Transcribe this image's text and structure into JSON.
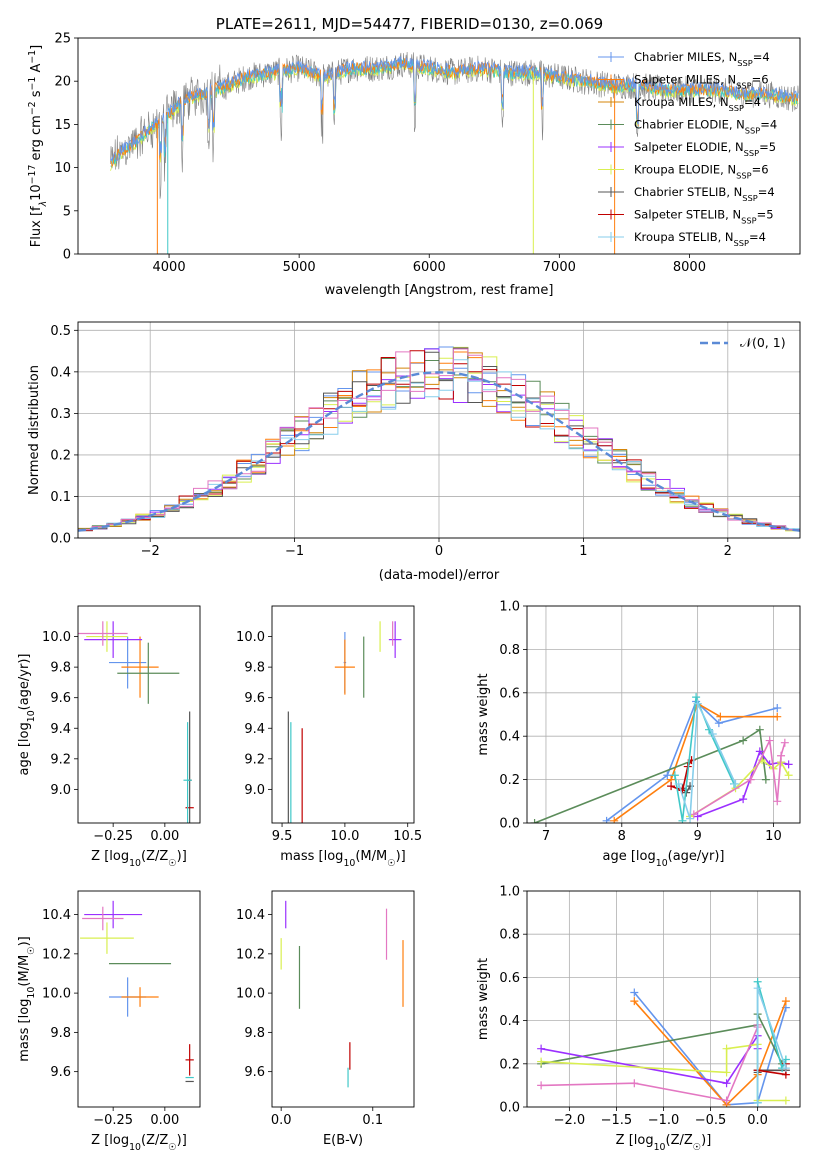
{
  "figure": {
    "title": "PLATE=2611, MJD=54477, FIBERID=0130, z=0.069"
  },
  "colors": {
    "chabrier_miles": "#6495ed",
    "salpeter_miles": "#ff7f0e",
    "kroupa_miles": "#d4850a",
    "chabrier_elodie": "#5b8c5a",
    "salpeter_elodie": "#9b30ff",
    "kroupa_elodie": "#d9ef50",
    "chabrier_stelib": "#555555",
    "salpeter_stelib": "#c00000",
    "kroupa_stelib": "#87ceeb",
    "pink": "#e377c2",
    "teal": "#40c8c8",
    "gray_trace": "#808080",
    "normal_curve": "#5b8ad6"
  },
  "chart_data": [
    {
      "id": "spectrum",
      "type": "line",
      "title": "PLATE=2611, MJD=54477, FIBERID=0130, z=0.069",
      "xlabel": "wavelength [Angstrom, rest frame]",
      "ylabel_main": "Flux [f",
      "ylabel_sub": "λ",
      "ylabel_rest": "10",
      "ylabel_exp": "−17",
      "ylabel_units": " erg cm",
      "ylabel_cm_exp": "−2",
      "ylabel_s": " s",
      "ylabel_s_exp": "−1",
      "ylabel_A": " A",
      "ylabel_A_exp": "−1",
      "ylabel_close": "]",
      "xlim": [
        3300,
        8850
      ],
      "ylim": [
        0,
        25
      ],
      "xticks": [
        "4000",
        "5000",
        "6000",
        "7000",
        "8000"
      ],
      "xtick_values": [
        4000,
        5000,
        6000,
        7000,
        8000
      ],
      "yticks": [
        "0",
        "5",
        "10",
        "15",
        "20",
        "25"
      ],
      "ytick_values": [
        0,
        5,
        10,
        15,
        20,
        25
      ],
      "continuum": [
        [
          3550,
          10.5
        ],
        [
          3650,
          12.0
        ],
        [
          3750,
          13.0
        ],
        [
          3850,
          14.5
        ],
        [
          3950,
          15.5
        ],
        [
          4050,
          17.0
        ],
        [
          4150,
          18.0
        ],
        [
          4250,
          18.5
        ],
        [
          4350,
          19.0
        ],
        [
          4450,
          19.5
        ],
        [
          4600,
          20.5
        ],
        [
          4800,
          21.0
        ],
        [
          5000,
          21.5
        ],
        [
          5200,
          20.5
        ],
        [
          5400,
          21.5
        ],
        [
          5600,
          21.5
        ],
        [
          5800,
          22.0
        ],
        [
          6000,
          21.5
        ],
        [
          6200,
          21.0
        ],
        [
          6400,
          21.5
        ],
        [
          6600,
          21.0
        ],
        [
          6800,
          21.0
        ],
        [
          7000,
          20.5
        ],
        [
          7200,
          20.0
        ],
        [
          7400,
          19.5
        ],
        [
          7600,
          19.5
        ],
        [
          7800,
          19.0
        ],
        [
          8000,
          19.0
        ],
        [
          8200,
          19.0
        ],
        [
          8400,
          18.5
        ],
        [
          8600,
          18.5
        ],
        [
          8800,
          18.0
        ]
      ],
      "legend_position": "top-right",
      "legend": [
        {
          "label": "Chabrier MILES, N",
          "sub": "SSP",
          "eq": "=4",
          "color": "#6495ed"
        },
        {
          "label": "Salpeter MILES, N",
          "sub": "SSP",
          "eq": "=6",
          "color": "#ff7f0e"
        },
        {
          "label": "Kroupa MILES, N",
          "sub": "SSP",
          "eq": "=4",
          "color": "#d4850a"
        },
        {
          "label": "Chabrier ELODIE, N",
          "sub": "SSP",
          "eq": "=4",
          "color": "#5b8c5a"
        },
        {
          "label": "Salpeter ELODIE, N",
          "sub": "SSP",
          "eq": "=5",
          "color": "#9b30ff"
        },
        {
          "label": "Kroupa ELODIE, N",
          "sub": "SSP",
          "eq": "=6",
          "color": "#d9ef50"
        },
        {
          "label": "Chabrier STELIB, N",
          "sub": "SSP",
          "eq": "=4",
          "color": "#555555"
        },
        {
          "label": "Salpeter STELIB, N",
          "sub": "SSP",
          "eq": "=5",
          "color": "#c00000"
        },
        {
          "label": "Kroupa STELIB, N",
          "sub": "SSP",
          "eq": "=4",
          "color": "#87ceeb"
        }
      ]
    },
    {
      "id": "residuals",
      "type": "histogram",
      "xlabel": "(data-model)/error",
      "ylabel": "Normed distribution",
      "xlim": [
        -2.5,
        2.5
      ],
      "ylim": [
        0,
        0.52
      ],
      "grid": true,
      "xticks": [
        "−2",
        "−1",
        "0",
        "1",
        "2"
      ],
      "xtick_values": [
        -2,
        -1,
        0,
        1,
        2
      ],
      "yticks": [
        "0.0",
        "0.1",
        "0.2",
        "0.3",
        "0.4",
        "0.5"
      ],
      "ytick_values": [
        0,
        0.1,
        0.2,
        0.3,
        0.4,
        0.5
      ],
      "bin_width": 0.1,
      "legend_position": "top-right",
      "legend_label": "𝒩(0, 1)",
      "normal_pdf": true
    },
    {
      "id": "age_vs_Z",
      "type": "errorbar",
      "xlabel": "Z [log10(Z/Z☉)]",
      "xlabel_pre": "Z [log",
      "xlabel_sub": "10",
      "xlabel_post": "(Z/Z",
      "xlabel_sun": "☉",
      "xlabel_end": ")]",
      "ylabel_pre": "age  [log",
      "ylabel_sub": "10",
      "ylabel_post": "(age/yr)]",
      "xlim": [
        -0.42,
        0.17
      ],
      "ylim": [
        8.78,
        10.2
      ],
      "xticks": [
        "−0.25",
        "0.00"
      ],
      "xtick_values": [
        -0.25,
        0.0
      ],
      "yticks": [
        "9.0",
        "9.2",
        "9.4",
        "9.6",
        "9.8",
        "10.0"
      ],
      "ytick_values": [
        9.0,
        9.2,
        9.4,
        9.6,
        9.8,
        10.0
      ],
      "points": [
        {
          "x": -0.18,
          "y": 9.83,
          "xerr": 0.09,
          "yerr": 0.17,
          "c": "#6495ed"
        },
        {
          "x": -0.12,
          "y": 9.8,
          "xerr": 0.09,
          "yerr": 0.2,
          "c": "#ff7f0e"
        },
        {
          "x": -0.08,
          "y": 9.76,
          "xerr": 0.15,
          "yerr": 0.2,
          "c": "#5b8c5a"
        },
        {
          "x": -0.25,
          "y": 9.98,
          "xerr": 0.14,
          "yerr": 0.12,
          "c": "#9b30ff"
        },
        {
          "x": -0.28,
          "y": 10.0,
          "xerr": 0.1,
          "yerr": 0.1,
          "c": "#d9ef50"
        },
        {
          "x": -0.3,
          "y": 10.02,
          "xerr": 0.12,
          "yerr": 0.08,
          "c": "#e377c2"
        },
        {
          "x": 0.12,
          "y": 9.06,
          "xerr": 0.01,
          "yerr": 0.45,
          "c": "#555555"
        },
        {
          "x": 0.12,
          "y": 8.88,
          "xerr": 0.02,
          "yerr": 0.0,
          "c": "#c00000"
        },
        {
          "x": 0.11,
          "y": 9.06,
          "xerr": 0.02,
          "yerr": 0.38,
          "c": "#40c8c8"
        }
      ]
    },
    {
      "id": "age_vs_mass",
      "type": "errorbar",
      "xlabel_pre": "mass [log",
      "xlabel_sub": "10",
      "xlabel_post": "(M/M",
      "xlabel_sun": "☉",
      "xlabel_end": ")]",
      "xlim": [
        9.42,
        10.55
      ],
      "ylim": [
        8.78,
        10.2
      ],
      "xticks": [
        "9.5",
        "10.0",
        "10.5"
      ],
      "xtick_values": [
        9.5,
        10.0,
        10.5
      ],
      "yticks": [
        "9.0",
        "9.2",
        "9.4",
        "9.6",
        "9.8",
        "10.0"
      ],
      "ytick_values": [
        9.0,
        9.2,
        9.4,
        9.6,
        9.8,
        10.0
      ],
      "points": [
        {
          "x": 10.0,
          "y": 9.83,
          "xerr": 0.01,
          "yerr": 0.2,
          "c": "#6495ed"
        },
        {
          "x": 10.0,
          "y": 9.8,
          "xerr": 0.08,
          "yerr": 0.18,
          "c": "#ff7f0e"
        },
        {
          "x": 10.15,
          "y": 9.8,
          "xerr": 0.0,
          "yerr": 0.2,
          "c": "#5b8c5a"
        },
        {
          "x": 10.4,
          "y": 9.98,
          "xerr": 0.05,
          "yerr": 0.12,
          "c": "#9b30ff"
        },
        {
          "x": 10.28,
          "y": 10.0,
          "xerr": 0.0,
          "yerr": 0.1,
          "c": "#d9ef50"
        },
        {
          "x": 10.38,
          "y": 10.02,
          "xerr": 0.0,
          "yerr": 0.08,
          "c": "#e377c2"
        },
        {
          "x": 9.55,
          "y": 9.06,
          "xerr": 0.0,
          "yerr": 0.45,
          "c": "#555555"
        },
        {
          "x": 9.66,
          "y": 8.88,
          "xerr": 0.0,
          "yerr": 0.52,
          "c": "#c00000"
        },
        {
          "x": 9.57,
          "y": 9.06,
          "xerr": 0.0,
          "yerr": 0.38,
          "c": "#40c8c8"
        }
      ]
    },
    {
      "id": "massweight_vs_age",
      "type": "line",
      "xlabel_pre": "age  [log",
      "xlabel_sub": "10",
      "xlabel_post": "(age/yr)]",
      "ylabel": "mass weight",
      "xlim": [
        6.75,
        10.35
      ],
      "ylim": [
        0,
        1
      ],
      "grid": true,
      "xticks": [
        "7",
        "8",
        "9",
        "10"
      ],
      "xtick_values": [
        7,
        8,
        9,
        10
      ],
      "yticks": [
        "0.0",
        "0.2",
        "0.4",
        "0.6",
        "0.8",
        "1.0"
      ],
      "ytick_values": [
        0,
        0.2,
        0.4,
        0.6,
        0.8,
        1.0
      ],
      "series": [
        {
          "c": "#6495ed",
          "x": [
            7.8,
            8.6,
            8.98,
            9.28,
            10.05
          ],
          "y": [
            0.01,
            0.22,
            0.56,
            0.46,
            0.53
          ]
        },
        {
          "c": "#ff7f0e",
          "x": [
            7.9,
            8.65,
            9.0,
            9.3,
            10.05
          ],
          "y": [
            0.01,
            0.2,
            0.55,
            0.49,
            0.49
          ]
        },
        {
          "c": "#5b8c5a",
          "x": [
            6.85,
            9.6,
            9.82,
            9.9
          ],
          "y": [
            0.0,
            0.38,
            0.43,
            0.2
          ]
        },
        {
          "c": "#9b30ff",
          "x": [
            9.0,
            9.6,
            9.82,
            9.95,
            10.1,
            10.2
          ],
          "y": [
            0.03,
            0.11,
            0.33,
            0.27,
            0.28,
            0.27
          ]
        },
        {
          "c": "#d9ef50",
          "x": [
            8.9,
            9.5,
            9.85,
            10.0,
            10.1,
            10.2
          ],
          "y": [
            0.03,
            0.16,
            0.29,
            0.25,
            0.28,
            0.22
          ]
        },
        {
          "c": "#e377c2",
          "x": [
            8.95,
            9.7,
            9.95,
            10.05,
            10.1,
            10.15
          ],
          "y": [
            0.04,
            0.2,
            0.38,
            0.1,
            0.31,
            0.37
          ]
        },
        {
          "c": "#555555",
          "x": [
            8.8,
            8.85,
            8.9
          ],
          "y": [
            0.16,
            0.14,
            0.17
          ]
        },
        {
          "c": "#c00000",
          "x": [
            8.65,
            8.8,
            8.87,
            8.92
          ],
          "y": [
            0.17,
            0.15,
            0.26,
            0.29
          ]
        },
        {
          "c": "#40c8c8",
          "x": [
            8.7,
            8.8,
            8.98,
            9.15,
            9.48
          ],
          "y": [
            0.22,
            0.01,
            0.58,
            0.43,
            0.18
          ]
        },
        {
          "c": "#87ceeb",
          "x": [
            8.75,
            8.9,
            9.0,
            9.2,
            9.5
          ],
          "y": [
            0.18,
            0.02,
            0.55,
            0.41,
            0.18
          ]
        }
      ]
    },
    {
      "id": "mass_vs_Z",
      "type": "errorbar",
      "xlabel_pre": "Z [log",
      "xlabel_sub": "10",
      "xlabel_post": "(Z/Z",
      "xlabel_sun": "☉",
      "xlabel_end": ")]",
      "ylabel_pre": "mass [log",
      "ylabel_sub": "10",
      "ylabel_post": "(M/M",
      "ylabel_sun": "☉",
      "ylabel_end": ")]",
      "xlim": [
        -0.42,
        0.17
      ],
      "ylim": [
        9.42,
        10.52
      ],
      "xticks": [
        "−0.25",
        "0.00"
      ],
      "xtick_values": [
        -0.25,
        0.0
      ],
      "yticks": [
        "9.6",
        "9.8",
        "10.0",
        "10.2",
        "10.4"
      ],
      "ytick_values": [
        9.6,
        9.8,
        10.0,
        10.2,
        10.4
      ],
      "points": [
        {
          "x": -0.18,
          "y": 9.98,
          "xerr": 0.09,
          "yerr": 0.1,
          "c": "#6495ed"
        },
        {
          "x": -0.12,
          "y": 9.98,
          "xerr": 0.09,
          "yerr": 0.05,
          "c": "#ff7f0e"
        },
        {
          "x": -0.12,
          "y": 10.15,
          "xerr": 0.15,
          "yerr": 0.0,
          "c": "#5b8c5a"
        },
        {
          "x": -0.25,
          "y": 10.4,
          "xerr": 0.14,
          "yerr": 0.07,
          "c": "#9b30ff"
        },
        {
          "x": -0.28,
          "y": 10.28,
          "xerr": 0.13,
          "yerr": 0.08,
          "c": "#d9ef50"
        },
        {
          "x": -0.3,
          "y": 10.38,
          "xerr": 0.1,
          "yerr": 0.06,
          "c": "#e377c2"
        },
        {
          "x": 0.12,
          "y": 9.55,
          "xerr": 0.02,
          "yerr": 0.0,
          "c": "#555555"
        },
        {
          "x": 0.12,
          "y": 9.66,
          "xerr": 0.02,
          "yerr": 0.08,
          "c": "#c00000"
        },
        {
          "x": 0.12,
          "y": 9.57,
          "xerr": 0.02,
          "yerr": 0.0,
          "c": "#40c8c8"
        }
      ]
    },
    {
      "id": "mass_vs_ebv",
      "type": "errorbar",
      "xlabel": "E(B-V)",
      "xlim": [
        -0.01,
        0.145
      ],
      "ylim": [
        9.42,
        10.52
      ],
      "xticks": [
        "0.0",
        "0.1"
      ],
      "xtick_values": [
        0.0,
        0.1
      ],
      "yticks": [
        "9.6",
        "9.8",
        "10.0",
        "10.2",
        "10.4"
      ],
      "ytick_values": [
        9.6,
        9.8,
        10.0,
        10.2,
        10.4
      ],
      "points": [
        {
          "x": 0.005,
          "y": 10.4,
          "xerr": 0.0,
          "yerr": 0.07,
          "c": "#9b30ff"
        },
        {
          "x": 0.0,
          "y": 10.2,
          "xerr": 0.0,
          "yerr": 0.08,
          "c": "#d9ef50"
        },
        {
          "x": 0.02,
          "y": 10.08,
          "xerr": 0.0,
          "yerr": 0.16,
          "c": "#5b8c5a"
        },
        {
          "x": 0.115,
          "y": 10.3,
          "xerr": 0.0,
          "yerr": 0.13,
          "c": "#e377c2"
        },
        {
          "x": 0.133,
          "y": 10.1,
          "xerr": 0.0,
          "yerr": 0.17,
          "c": "#ff7f0e"
        },
        {
          "x": 0.075,
          "y": 9.68,
          "xerr": 0.0,
          "yerr": 0.07,
          "c": "#c00000"
        },
        {
          "x": 0.073,
          "y": 9.57,
          "xerr": 0.0,
          "yerr": 0.05,
          "c": "#40c8c8"
        }
      ]
    },
    {
      "id": "massweight_vs_Z",
      "type": "line",
      "xlabel_pre": "Z [log",
      "xlabel_sub": "10",
      "xlabel_post": "(Z/Z",
      "xlabel_sun": "☉",
      "xlabel_end": ")]",
      "ylabel": "mass weight",
      "xlim": [
        -2.45,
        0.45
      ],
      "ylim": [
        0,
        1
      ],
      "grid": true,
      "xticks": [
        "−2.0",
        "−1.5",
        "−1.0",
        "−0.5",
        "0.0"
      ],
      "xtick_values": [
        -2.0,
        -1.5,
        -1.0,
        -0.5,
        0.0
      ],
      "yticks": [
        "0.0",
        "0.2",
        "0.4",
        "0.6",
        "0.8",
        "1.0"
      ],
      "ytick_values": [
        0,
        0.2,
        0.4,
        0.6,
        0.8,
        1.0
      ],
      "series": [
        {
          "c": "#6495ed",
          "x": [
            -1.31,
            -0.33,
            0.0,
            0.3
          ],
          "y": [
            0.53,
            0.01,
            0.02,
            0.46
          ]
        },
        {
          "c": "#ff7f0e",
          "x": [
            -1.31,
            -0.33,
            0.0,
            0.3
          ],
          "y": [
            0.49,
            0.01,
            0.15,
            0.49
          ]
        },
        {
          "c": "#5b8c5a",
          "x": [
            -2.3,
            0.0,
            0.0,
            0.26
          ],
          "y": [
            0.2,
            0.38,
            0.43,
            0.2
          ]
        },
        {
          "c": "#9b30ff",
          "x": [
            -2.3,
            -0.33,
            0.0,
            0.0
          ],
          "y": [
            0.27,
            0.11,
            0.33,
            0.27
          ]
        },
        {
          "c": "#d9ef50",
          "x": [
            -2.3,
            -0.33,
            -0.33,
            0.0,
            0.0,
            0.3
          ],
          "y": [
            0.21,
            0.16,
            0.27,
            0.29,
            0.03,
            0.03
          ]
        },
        {
          "c": "#e377c2",
          "x": [
            -2.3,
            -1.31,
            -0.33,
            0.0,
            0.0
          ],
          "y": [
            0.1,
            0.11,
            0.03,
            0.37,
            0.38
          ]
        },
        {
          "c": "#555555",
          "x": [
            0.0,
            0.0,
            0.3
          ],
          "y": [
            0.16,
            0.17,
            0.17
          ]
        },
        {
          "c": "#c00000",
          "x": [
            0.0,
            0.3,
            0.3
          ],
          "y": [
            0.17,
            0.15,
            0.2
          ]
        },
        {
          "c": "#40c8c8",
          "x": [
            0.0,
            0.0,
            0.26,
            0.3
          ],
          "y": [
            0.02,
            0.58,
            0.18,
            0.22
          ]
        },
        {
          "c": "#87ceeb",
          "x": [
            0.0,
            0.0,
            0.3
          ],
          "y": [
            0.02,
            0.55,
            0.18
          ]
        }
      ]
    }
  ]
}
